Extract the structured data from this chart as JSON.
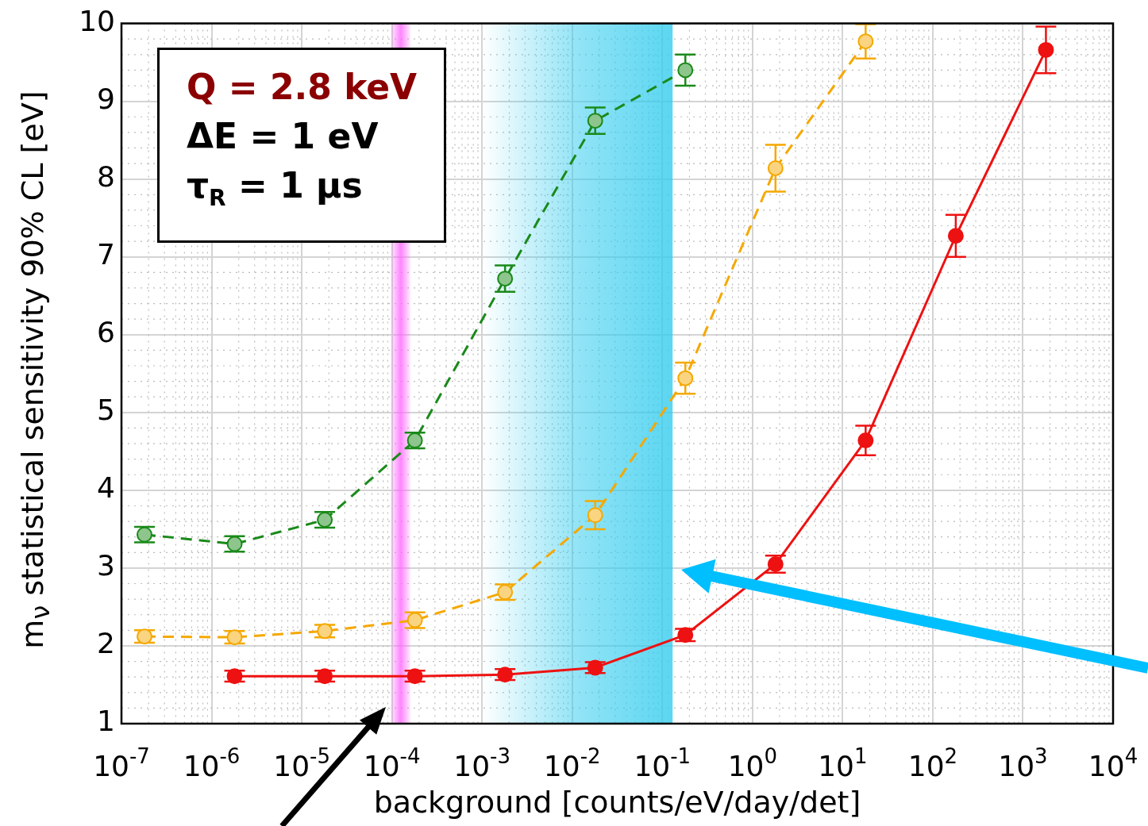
{
  "chart_data": {
    "type": "line",
    "xlabel": "background [counts/eV/day/det]",
    "ylabel": "m$_{ν}$ statistical sensitivity 90% CL [eV]",
    "log": "x",
    "xlim": [
      1e-07,
      10000
    ],
    "ylim": [
      1,
      10
    ],
    "xticks": [
      {
        "value": 1e-07,
        "label": "10$^{-7}$"
      },
      {
        "value": 1e-06,
        "label": "10$^{-6}$"
      },
      {
        "value": 1e-05,
        "label": "10$^{-5}$"
      },
      {
        "value": 0.0001,
        "label": "10$^{-4}$"
      },
      {
        "value": 0.001,
        "label": "10$^{-3}$"
      },
      {
        "value": 0.01,
        "label": "10$^{-2}$"
      },
      {
        "value": 0.1,
        "label": "10$^{-1}$"
      },
      {
        "value": 1,
        "label": "10$^{0}$"
      },
      {
        "value": 10,
        "label": "10$^{1}$"
      },
      {
        "value": 100,
        "label": "10$^{2}$"
      },
      {
        "value": 1000,
        "label": "10$^{3}$"
      },
      {
        "value": 10000,
        "label": "10$^{4}$"
      }
    ],
    "yticks": [
      1,
      2,
      3,
      4,
      5,
      6,
      7,
      8,
      9,
      10
    ],
    "grid": true,
    "marker": "circle",
    "legend": false,
    "series": [
      {
        "color": "#1a8a1a",
        "line_style": "dashed",
        "x": [
          1.8e-07,
          1.8e-06,
          1.8e-05,
          0.00018,
          0.0018,
          0.018,
          0.18
        ],
        "values": [
          3.43,
          3.31,
          3.62,
          4.64,
          6.72,
          8.75,
          9.4
        ],
        "errors": [
          0.1,
          0.1,
          0.1,
          0.1,
          0.17,
          0.17,
          0.2
        ]
      },
      {
        "color": "#f5a800",
        "line_style": "dashed",
        "x": [
          1.8e-07,
          1.8e-06,
          1.8e-05,
          0.00018,
          0.0018,
          0.018,
          0.18,
          1.8,
          18
        ],
        "values": [
          2.12,
          2.11,
          2.19,
          2.33,
          2.69,
          3.68,
          5.44,
          8.14,
          9.77
        ],
        "errors": [
          0.08,
          0.08,
          0.08,
          0.1,
          0.1,
          0.18,
          0.2,
          0.3,
          0.22
        ]
      },
      {
        "color": "#ee1111",
        "line_style": "solid",
        "x": [
          1.8e-06,
          1.8e-05,
          0.00018,
          0.0018,
          0.018,
          0.18,
          1.8,
          18,
          180,
          1800
        ],
        "values": [
          1.61,
          1.61,
          1.61,
          1.63,
          1.72,
          2.14,
          3.05,
          4.64,
          7.27,
          9.66
        ],
        "errors": [
          0.07,
          0.07,
          0.07,
          0.07,
          0.07,
          0.08,
          0.11,
          0.19,
          0.27,
          0.3
        ]
      }
    ],
    "bands": [
      {
        "axis": "x",
        "from": 9.8e-05,
        "to": 0.00016,
        "color": "#ff66ff"
      },
      {
        "axis": "x",
        "from": 0.001,
        "to": 0.13,
        "color": "#33ccee"
      }
    ],
    "annotations": [
      "Q = 2.8 keV",
      "ΔE = 1 eV",
      "τ$_{R}$ = 1 µs"
    ]
  }
}
